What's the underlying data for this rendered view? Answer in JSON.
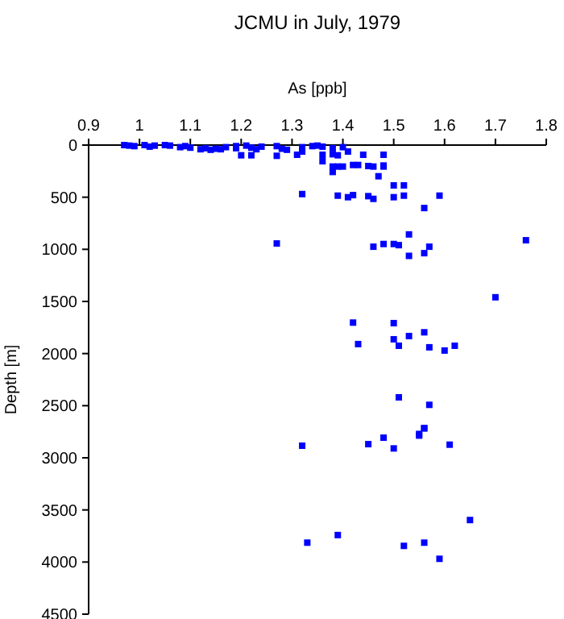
{
  "chart_data": {
    "type": "scatter",
    "title": "JCMU in July, 1979",
    "xlabel": "As [ppb]",
    "ylabel": "Depth [m]",
    "xlim": [
      0.9,
      1.8
    ],
    "xticks": [
      0.9,
      1,
      1.1,
      1.2,
      1.3,
      1.4,
      1.5,
      1.6,
      1.7,
      1.8
    ],
    "ylim": [
      4500,
      0
    ],
    "yticks": [
      0,
      500,
      1000,
      1500,
      2000,
      2500,
      3000,
      3500,
      4000,
      4500
    ],
    "marker": "square",
    "grid": false,
    "series": [
      {
        "color": "#0000ff",
        "x": [
          0.97,
          0.98,
          0.99,
          1.01,
          1.02,
          1.03,
          1.05,
          1.06,
          1.08,
          1.09,
          1.1,
          1.12,
          1.13,
          1.14,
          1.15,
          1.16,
          1.17,
          1.19,
          1.19,
          1.21,
          1.22,
          1.23,
          1.24,
          1.27,
          1.28,
          1.29,
          1.32,
          1.34,
          1.35,
          1.36,
          1.38,
          1.4,
          1.2,
          1.22,
          1.27,
          1.31,
          1.32,
          1.36,
          1.36,
          1.38,
          1.39,
          1.41,
          1.44,
          1.48,
          1.38,
          1.38,
          1.39,
          1.4,
          1.42,
          1.43,
          1.45,
          1.46,
          1.48,
          1.48,
          1.47,
          1.5,
          1.52,
          1.32,
          1.39,
          1.41,
          1.42,
          1.45,
          1.46,
          1.5,
          1.52,
          1.59,
          1.56,
          1.27,
          1.46,
          1.48,
          1.5,
          1.51,
          1.53,
          1.56,
          1.57,
          1.53,
          1.76,
          1.7,
          1.42,
          1.5,
          1.56,
          1.53,
          1.5,
          1.43,
          1.51,
          1.57,
          1.6,
          1.62,
          1.51,
          1.57,
          1.56,
          1.55,
          1.32,
          1.45,
          1.48,
          1.5,
          1.55,
          1.56,
          1.61,
          1.65,
          1.33,
          1.39,
          1.52,
          1.56,
          1.59
        ],
        "values": [
          0,
          5,
          10,
          0,
          15,
          5,
          0,
          5,
          20,
          10,
          25,
          40,
          30,
          45,
          35,
          40,
          20,
          10,
          30,
          5,
          25,
          40,
          15,
          10,
          35,
          45,
          20,
          10,
          5,
          15,
          30,
          20,
          98,
          98,
          103,
          93,
          62,
          93,
          155,
          88,
          98,
          62,
          93,
          93,
          206,
          258,
          206,
          206,
          191,
          191,
          201,
          206,
          196,
          206,
          299,
          387,
          387,
          470,
          485,
          500,
          480,
          490,
          516,
          500,
          485,
          485,
          604,
          944,
          975,
          949,
          949,
          960,
          857,
          1037,
          975,
          1063,
          913,
          1460,
          1703,
          1708,
          1796,
          1832,
          1863,
          1909,
          1925,
          1940,
          1971,
          1925,
          2420,
          2492,
          2714,
          2771,
          2884,
          2869,
          2807,
          2910,
          2787,
          2719,
          2874,
          3597,
          3814,
          3741,
          3845,
          3814,
          3969
        ]
      }
    ]
  }
}
